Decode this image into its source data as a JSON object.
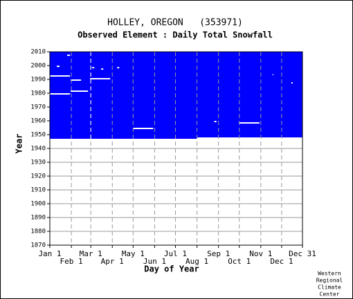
{
  "chart_data": {
    "type": "availability",
    "title": "HOLLEY, OREGON   (353971)",
    "subtitle": "Observed Element : Daily Total Snowfall",
    "y_label": "Year",
    "x_label": "Day of Year",
    "footer": [
      "Western",
      "Regional",
      "Climate",
      "Center"
    ],
    "color": "#0000ff",
    "coverage": [
      1947,
      2010
    ],
    "missing": [
      {
        "year": 1947,
        "days": [
          213,
          365
        ]
      },
      {
        "year": 1992,
        "days": [
          1,
          30
        ]
      },
      {
        "year": 1979,
        "days": [
          1,
          30
        ]
      },
      {
        "year": 1981,
        "days": [
          31,
          56
        ]
      },
      {
        "year": 1989,
        "days": [
          31,
          46
        ]
      },
      {
        "year": 1990,
        "days": [
          59,
          88
        ]
      },
      {
        "year": 1954,
        "days": [
          121,
          150
        ]
      },
      {
        "year": 1958,
        "days": [
          274,
          303
        ]
      },
      {
        "year": 1999,
        "days": [
          11,
          15
        ]
      },
      {
        "year": 1998,
        "days": [
          62,
          65
        ]
      },
      {
        "year": 1997,
        "days": [
          75,
          78
        ]
      },
      {
        "year": 1998,
        "days": [
          98,
          101
        ]
      },
      {
        "year": 2007,
        "days": [
          26,
          30
        ]
      },
      {
        "year": 1959,
        "days": [
          238,
          241
        ]
      },
      {
        "year": 1987,
        "days": [
          349,
          351
        ]
      },
      {
        "year": 1993,
        "days": [
          322,
          323
        ]
      }
    ],
    "xlim": [
      1,
      365
    ],
    "ylim": [
      1870,
      2010
    ],
    "yticks": [
      1870,
      1880,
      1890,
      1900,
      1910,
      1920,
      1930,
      1940,
      1950,
      1960,
      1970,
      1980,
      1990,
      2000,
      2010
    ],
    "xticks": [
      {
        "value": 1,
        "label": "Jan 1"
      },
      {
        "value": 32,
        "label": "Feb 1"
      },
      {
        "value": 60,
        "label": "Mar 1"
      },
      {
        "value": 91,
        "label": "Apr 1"
      },
      {
        "value": 121,
        "label": "May 1"
      },
      {
        "value": 152,
        "label": "Jun 1"
      },
      {
        "value": 182,
        "label": "Jul 1"
      },
      {
        "value": 213,
        "label": "Aug 1"
      },
      {
        "value": 244,
        "label": "Sep 1"
      },
      {
        "value": 274,
        "label": "Oct 1"
      },
      {
        "value": 305,
        "label": "Nov 1"
      },
      {
        "value": 335,
        "label": "Dec 1"
      },
      {
        "value": 365,
        "label": "Dec 31"
      }
    ],
    "grid": true
  }
}
